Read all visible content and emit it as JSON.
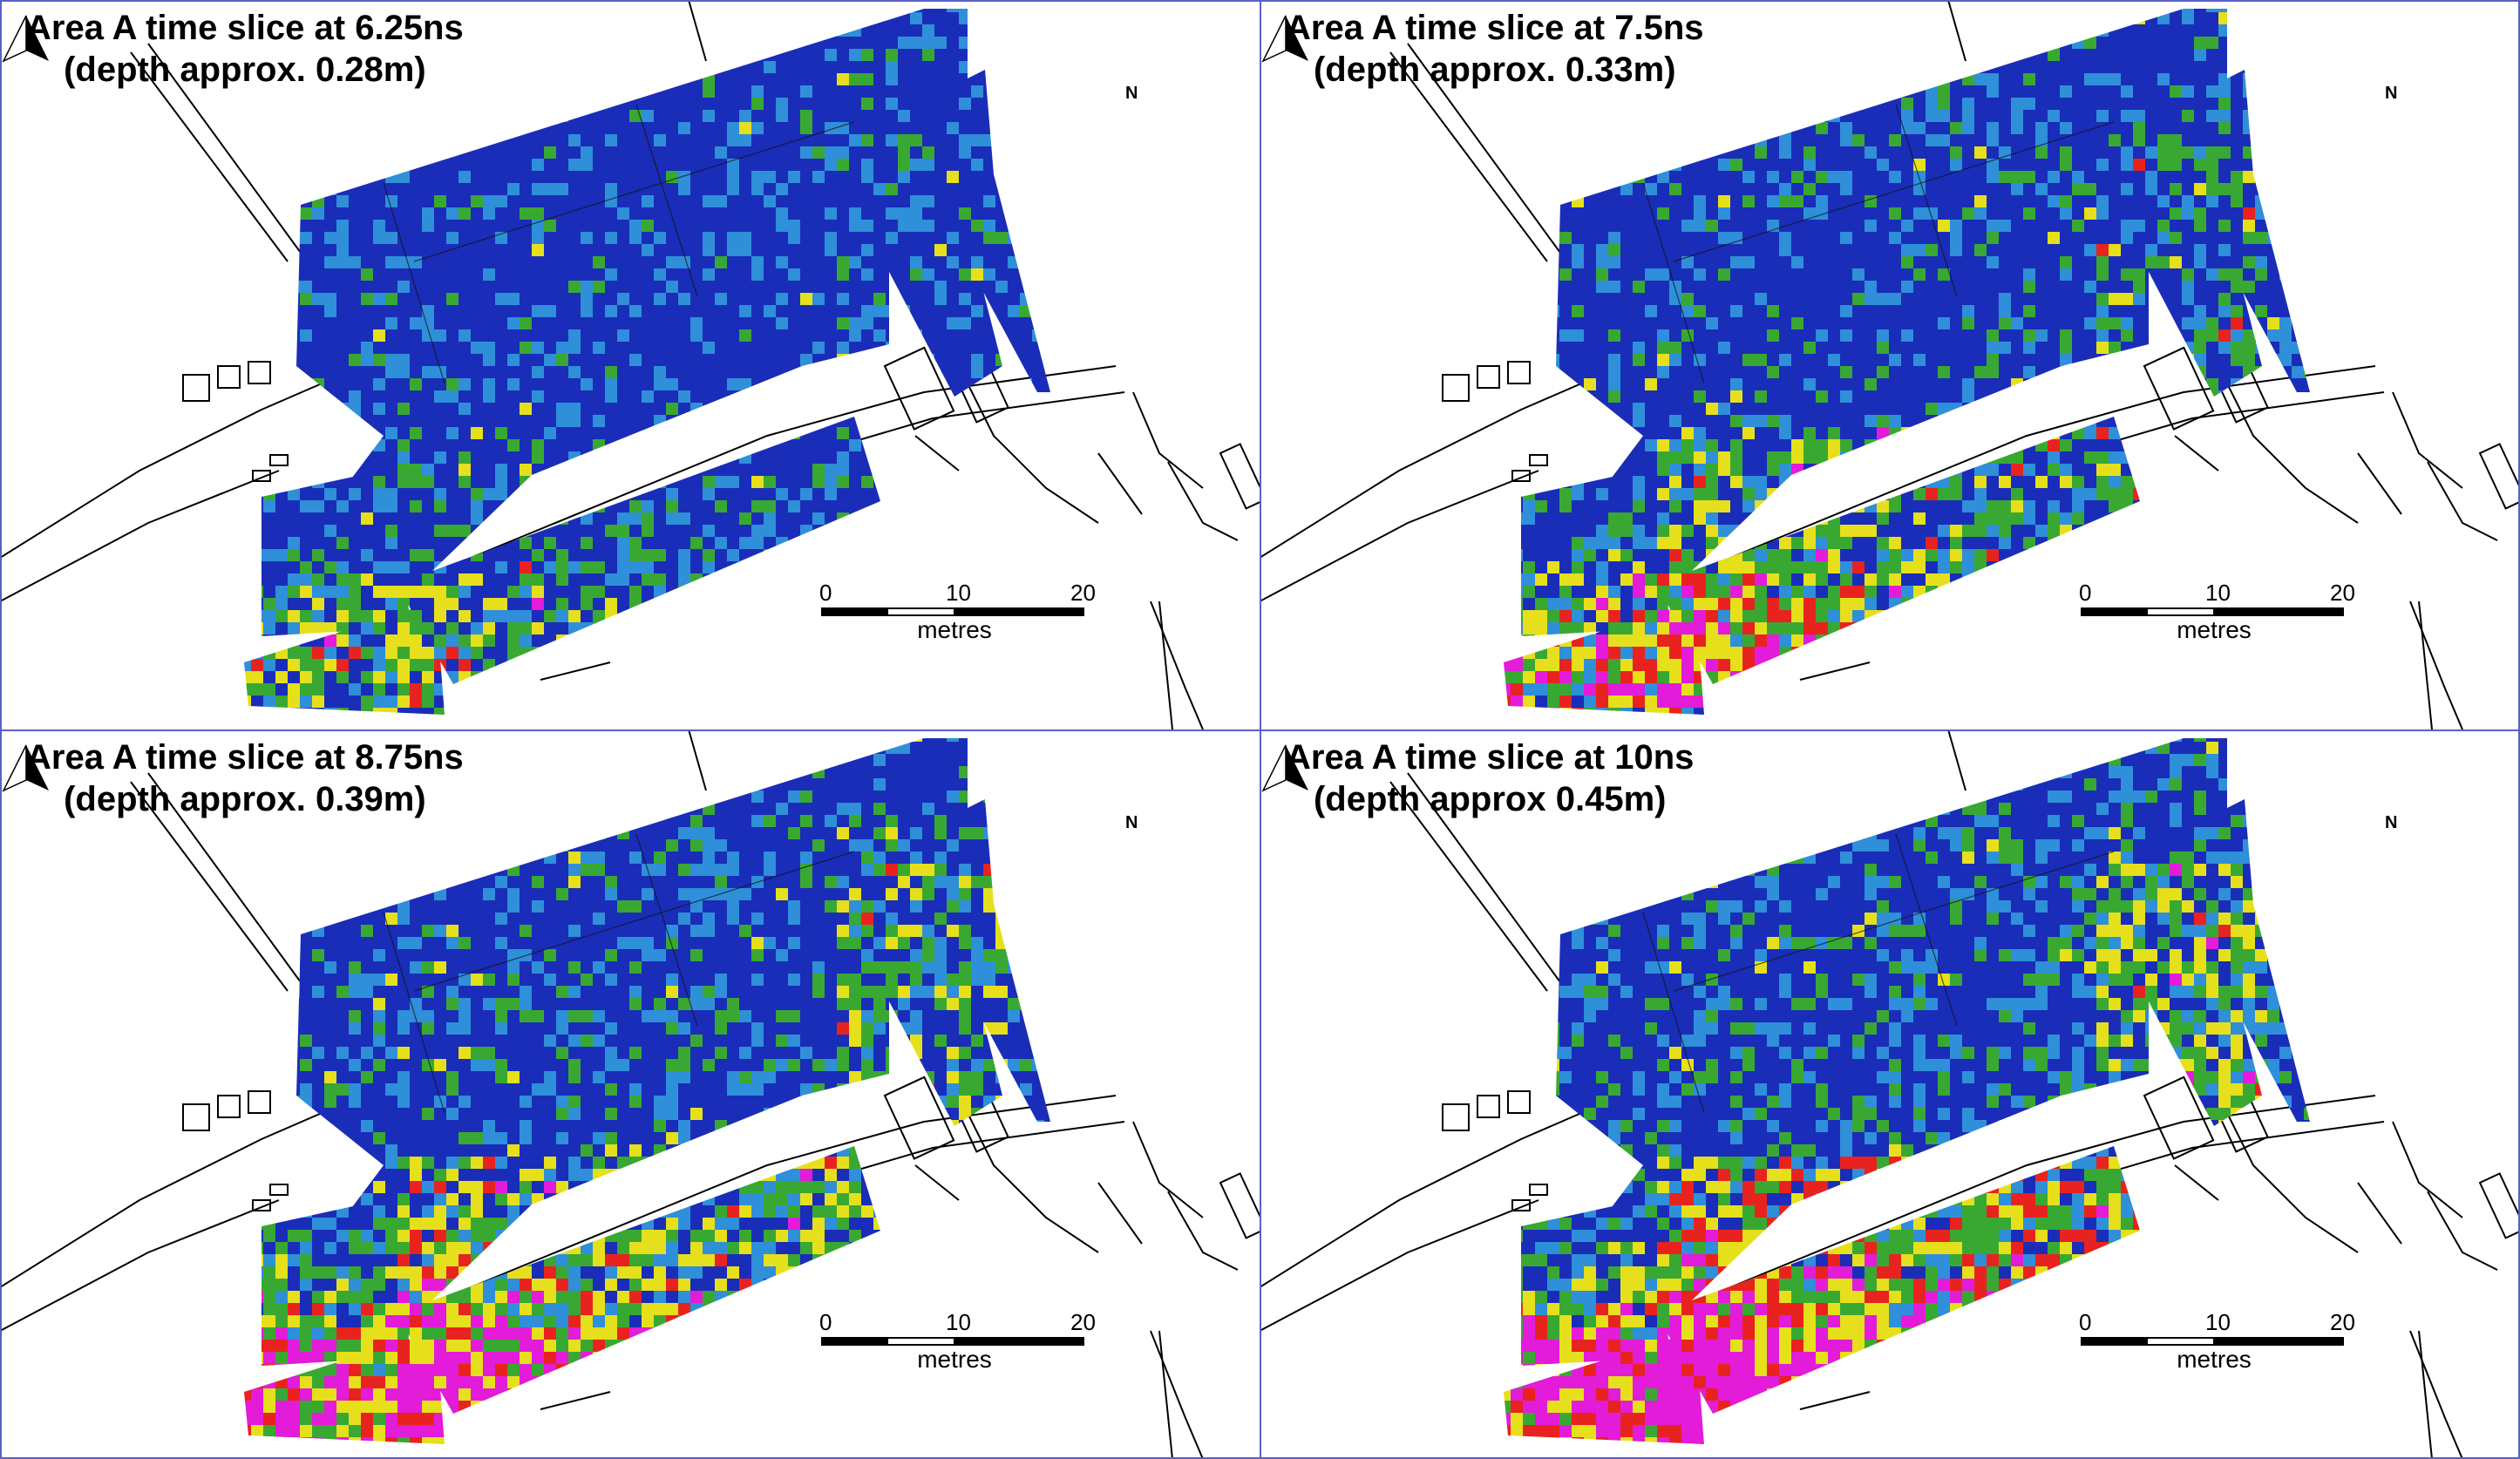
{
  "panels": [
    {
      "title_line1": "Area A time slice at 6.25ns",
      "title_line2": "(depth approx. 0.28m)",
      "intensity": 0.2
    },
    {
      "title_line1": "Area A time slice at 7.5ns",
      "title_line2": "(depth approx. 0.33m)",
      "intensity": 0.45
    },
    {
      "title_line1": "Area A time slice at 8.75ns",
      "title_line2": "(depth approx. 0.39m)",
      "intensity": 0.65
    },
    {
      "title_line1": "Area A time slice at 10ns",
      "title_line2": "(depth approx 0.45m)",
      "intensity": 0.8
    }
  ],
  "north_label": "N",
  "scale": {
    "tick_0": "0",
    "tick_10": "10",
    "tick_20": "20",
    "unit": "metres"
  },
  "colors": {
    "low": "#1a2db8",
    "mid_low": "#2f8fd8",
    "mid": "#39a832",
    "mid_high": "#e6e01c",
    "high": "#e8231f",
    "very_high": "#e21cd8",
    "basemap_line": "#000000",
    "panel_border": "#5a5fc8"
  }
}
